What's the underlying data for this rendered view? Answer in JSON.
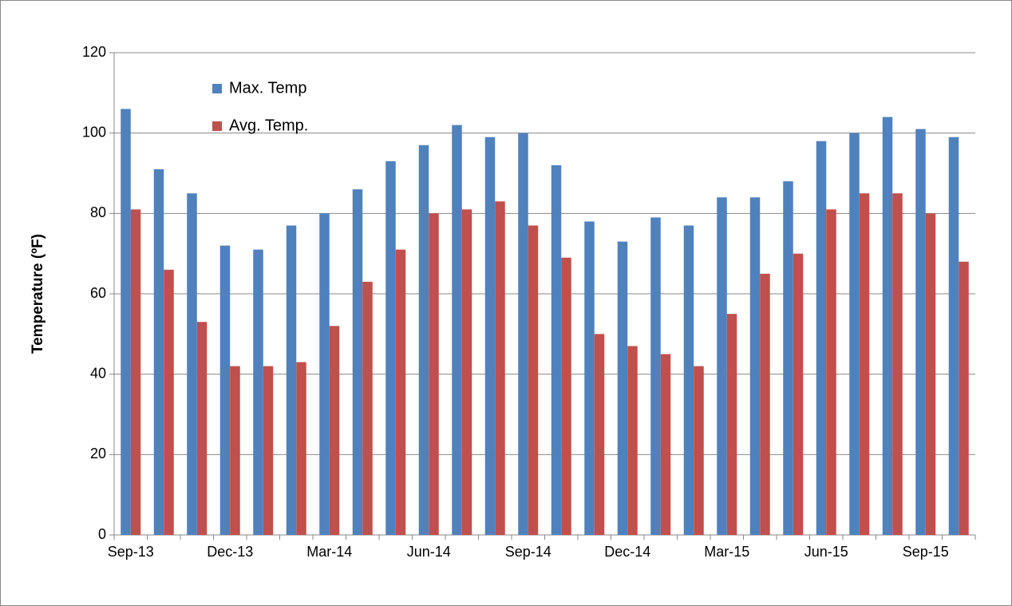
{
  "chart_data": {
    "type": "bar",
    "y_label": "Temperature (ºF)",
    "categories": [
      "Sep-13",
      null,
      null,
      "Dec-13",
      null,
      null,
      "Mar-14",
      null,
      null,
      "Jun-14",
      null,
      null,
      "Sep-14",
      null,
      null,
      "Dec-14",
      null,
      null,
      "Mar-15",
      null,
      null,
      "Jun-15",
      null,
      null,
      "Sep-15",
      null
    ],
    "series": [
      {
        "name": "Max. Temp",
        "color": "#4f81bd",
        "values": [
          106,
          91,
          85,
          72,
          71,
          77,
          80,
          86,
          93,
          97,
          102,
          99,
          100,
          92,
          78,
          73,
          79,
          77,
          84,
          84,
          88,
          98,
          100,
          104,
          101,
          99
        ]
      },
      {
        "name": "Avg. Temp.",
        "color": "#c0504d",
        "values": [
          81,
          66,
          53,
          42,
          42,
          43,
          52,
          63,
          71,
          80,
          81,
          83,
          77,
          69,
          50,
          47,
          45,
          42,
          55,
          65,
          70,
          81,
          85,
          85,
          80,
          68
        ]
      }
    ],
    "ylim": [
      0,
      120
    ],
    "yticks": [
      0,
      20,
      40,
      60,
      80,
      100,
      120
    ],
    "grid": true,
    "legend": "upper-left"
  }
}
